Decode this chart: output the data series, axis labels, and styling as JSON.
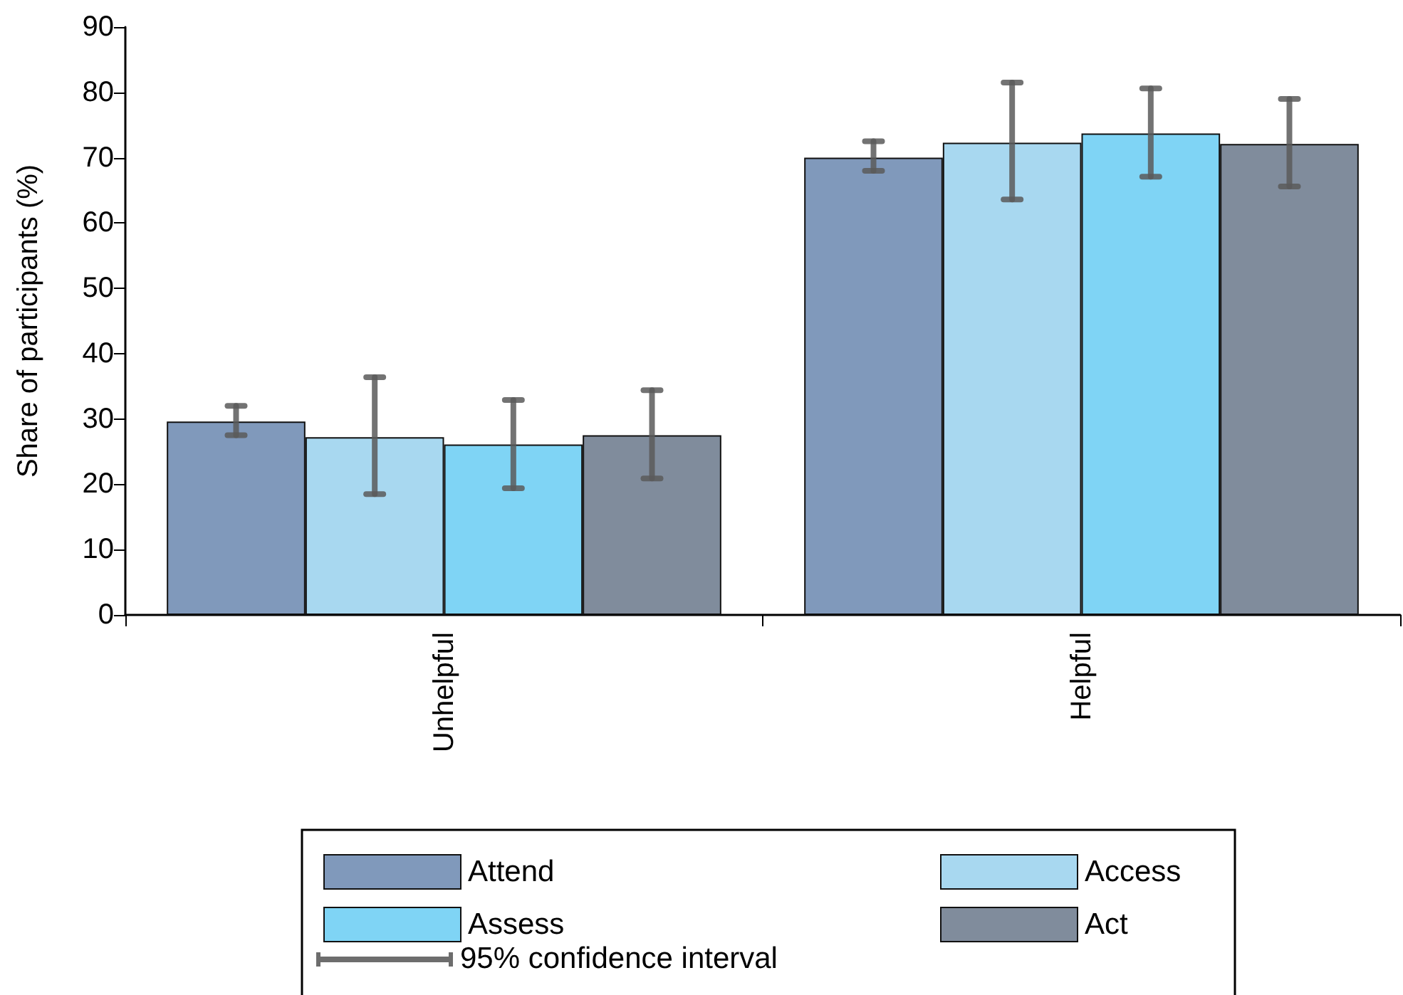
{
  "chart_data": {
    "type": "bar",
    "ylabel": "Share of participants (%)",
    "categories": [
      "Unhelpful",
      "Helpful"
    ],
    "series": [
      {
        "name": "Attend",
        "color": "#8099bb",
        "values": [
          29.6,
          70.0
        ],
        "errors": [
          [
            27.5,
            32.0
          ],
          [
            68.0,
            72.5
          ]
        ]
      },
      {
        "name": "Access",
        "color": "#a8d8f0",
        "values": [
          27.2,
          72.3
        ],
        "errors": [
          [
            18.5,
            36.4
          ],
          [
            63.6,
            81.5
          ]
        ]
      },
      {
        "name": "Assess",
        "color": "#7fd4f5",
        "values": [
          26.1,
          73.7
        ],
        "errors": [
          [
            19.4,
            32.9
          ],
          [
            67.1,
            80.6
          ]
        ]
      },
      {
        "name": "Act",
        "color": "#808c9c",
        "values": [
          27.5,
          72.1
        ],
        "errors": [
          [
            20.9,
            34.4
          ],
          [
            65.6,
            79.0
          ]
        ]
      }
    ],
    "ylim": [
      0,
      90
    ],
    "yticks": [
      0,
      10,
      20,
      30,
      40,
      50,
      60,
      70,
      80,
      90
    ],
    "grid": false,
    "legend": "bottom",
    "annotations": [
      "95% confidence interval"
    ]
  }
}
